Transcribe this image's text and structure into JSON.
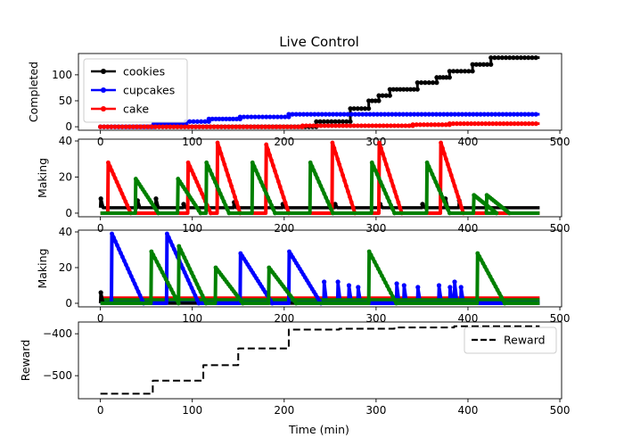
{
  "chart_data": {
    "type": "line",
    "title": "Live Control",
    "xlabel": "Time (min)",
    "xlim": [
      -23.9,
      501.9
    ],
    "x_ticks": [
      0,
      100,
      200,
      300,
      400,
      500
    ],
    "colors": {
      "cookies": "#000000",
      "cupcakes": "#0000ff",
      "cake": "#ff0000",
      "green": "#008000"
    },
    "panels": [
      {
        "id": "completed",
        "ylabel": "Completed",
        "ylim": [
          -6.7,
          141
        ],
        "y_ticks": [
          0,
          50,
          100
        ],
        "legend": "upper-left",
        "series": [
          {
            "name": "cookies",
            "color": "#000000",
            "marker": true,
            "style": "step",
            "points": [
              [
                0,
                0
              ],
              [
                235,
                0
              ],
              [
                235,
                10
              ],
              [
                272,
                10
              ],
              [
                272,
                35
              ],
              [
                292,
                35
              ],
              [
                292,
                50
              ],
              [
                303,
                50
              ],
              [
                303,
                60
              ],
              [
                315,
                60
              ],
              [
                315,
                72
              ],
              [
                345,
                72
              ],
              [
                345,
                85
              ],
              [
                366,
                85
              ],
              [
                366,
                95
              ],
              [
                380,
                95
              ],
              [
                380,
                107
              ],
              [
                405,
                107
              ],
              [
                405,
                120
              ],
              [
                425,
                120
              ],
              [
                425,
                133
              ],
              [
                478,
                133
              ]
            ]
          },
          {
            "name": "cupcakes",
            "color": "#0000ff",
            "marker": true,
            "style": "step",
            "points": [
              [
                0,
                0
              ],
              [
                58,
                0
              ],
              [
                58,
                5
              ],
              [
                93,
                5
              ],
              [
                93,
                10
              ],
              [
                118,
                10
              ],
              [
                118,
                15
              ],
              [
                152,
                15
              ],
              [
                152,
                19
              ],
              [
                205,
                19
              ],
              [
                205,
                24
              ],
              [
                478,
                24
              ]
            ]
          },
          {
            "name": "cake",
            "color": "#ff0000",
            "marker": true,
            "style": "step",
            "points": [
              [
                0,
                0
              ],
              [
                220,
                0
              ],
              [
                220,
                2
              ],
              [
                340,
                2
              ],
              [
                340,
                4
              ],
              [
                380,
                4
              ],
              [
                380,
                6
              ],
              [
                478,
                6
              ]
            ]
          }
        ]
      },
      {
        "id": "making-1",
        "ylabel": "Making",
        "ylim": [
          -2,
          41
        ],
        "y_ticks": [
          0,
          20,
          40
        ],
        "colors": [
          "#000000",
          "#ff0000",
          "#008000"
        ],
        "sawtooth": [
          {
            "color": "#ff0000",
            "peaks": [
              [
                8,
                28
              ],
              [
                95,
                28
              ],
              [
                127,
                39
              ],
              [
                180,
                38
              ],
              [
                252,
                39
              ],
              [
                303,
                39
              ],
              [
                370,
                39
              ]
            ],
            "decay": 25
          },
          {
            "color": "#008000",
            "peaks": [
              [
                38,
                19
              ],
              [
                84,
                19
              ],
              [
                115,
                28
              ],
              [
                165,
                28
              ],
              [
                228,
                28
              ],
              [
                295,
                28
              ],
              [
                355,
                28
              ],
              [
                406,
                10
              ],
              [
                420,
                10
              ]
            ],
            "decay": 25
          }
        ],
        "baseline": [
          {
            "color": "#000000",
            "y": 3,
            "spikes": [
              [
                0,
                8
              ],
              [
                40,
                7
              ],
              [
                60,
                8
              ],
              [
                90,
                5
              ],
              [
                145,
                6
              ],
              [
                198,
                5
              ],
              [
                255,
                5
              ],
              [
                304,
                5
              ],
              [
                350,
                5
              ],
              [
                375,
                8
              ],
              [
                390,
                7
              ]
            ]
          }
        ]
      },
      {
        "id": "making-2",
        "ylabel": "Making",
        "ylim": [
          -2,
          41
        ],
        "y_ticks": [
          0,
          20,
          40
        ],
        "colors": [
          "#0000ff",
          "#ff0000",
          "#008000",
          "#000000"
        ],
        "sawtooth": [
          {
            "color": "#0000ff",
            "peaks": [
              [
                12,
                39
              ],
              [
                72,
                39
              ],
              [
                152,
                28
              ],
              [
                205,
                29
              ]
            ],
            "decay": 35
          },
          {
            "color": "#008000",
            "peaks": [
              [
                55,
                29
              ],
              [
                85,
                32
              ],
              [
                125,
                20
              ],
              [
                183,
                20
              ],
              [
                292,
                29
              ],
              [
                410,
                28
              ]
            ],
            "decay": 30
          }
        ],
        "baseline": [
          {
            "color": "#ff0000",
            "y": 3,
            "spikes": []
          },
          {
            "color": "#0000ff",
            "y": 1,
            "spikes": [
              [
                243,
                12
              ],
              [
                258,
                12
              ],
              [
                270,
                10
              ],
              [
                280,
                9
              ],
              [
                322,
                11
              ],
              [
                330,
                10
              ],
              [
                345,
                9
              ],
              [
                368,
                10
              ],
              [
                380,
                9
              ],
              [
                385,
                12
              ],
              [
                392,
                9
              ]
            ]
          },
          {
            "color": "#008000",
            "y": 2,
            "spikes": []
          },
          {
            "color": "#000000",
            "y": 0,
            "spikes": [
              [
                0,
                6
              ]
            ]
          }
        ]
      },
      {
        "id": "reward",
        "ylabel": "Reward",
        "ylim": [
          -555,
          -372
        ],
        "y_ticks": [
          -500,
          -400
        ],
        "legend": "upper-right",
        "series": [
          {
            "name": "Reward",
            "color": "#000000",
            "marker": false,
            "style": "dashed-step",
            "points": [
              [
                0,
                -543
              ],
              [
                57,
                -543
              ],
              [
                57,
                -512
              ],
              [
                112,
                -512
              ],
              [
                112,
                -475
              ],
              [
                150,
                -475
              ],
              [
                150,
                -435
              ],
              [
                205,
                -435
              ],
              [
                205,
                -390
              ],
              [
                260,
                -390
              ],
              [
                260,
                -388
              ],
              [
                320,
                -388
              ],
              [
                320,
                -385
              ],
              [
                385,
                -385
              ],
              [
                385,
                -382
              ],
              [
                478,
                -382
              ]
            ]
          }
        ]
      }
    ]
  }
}
